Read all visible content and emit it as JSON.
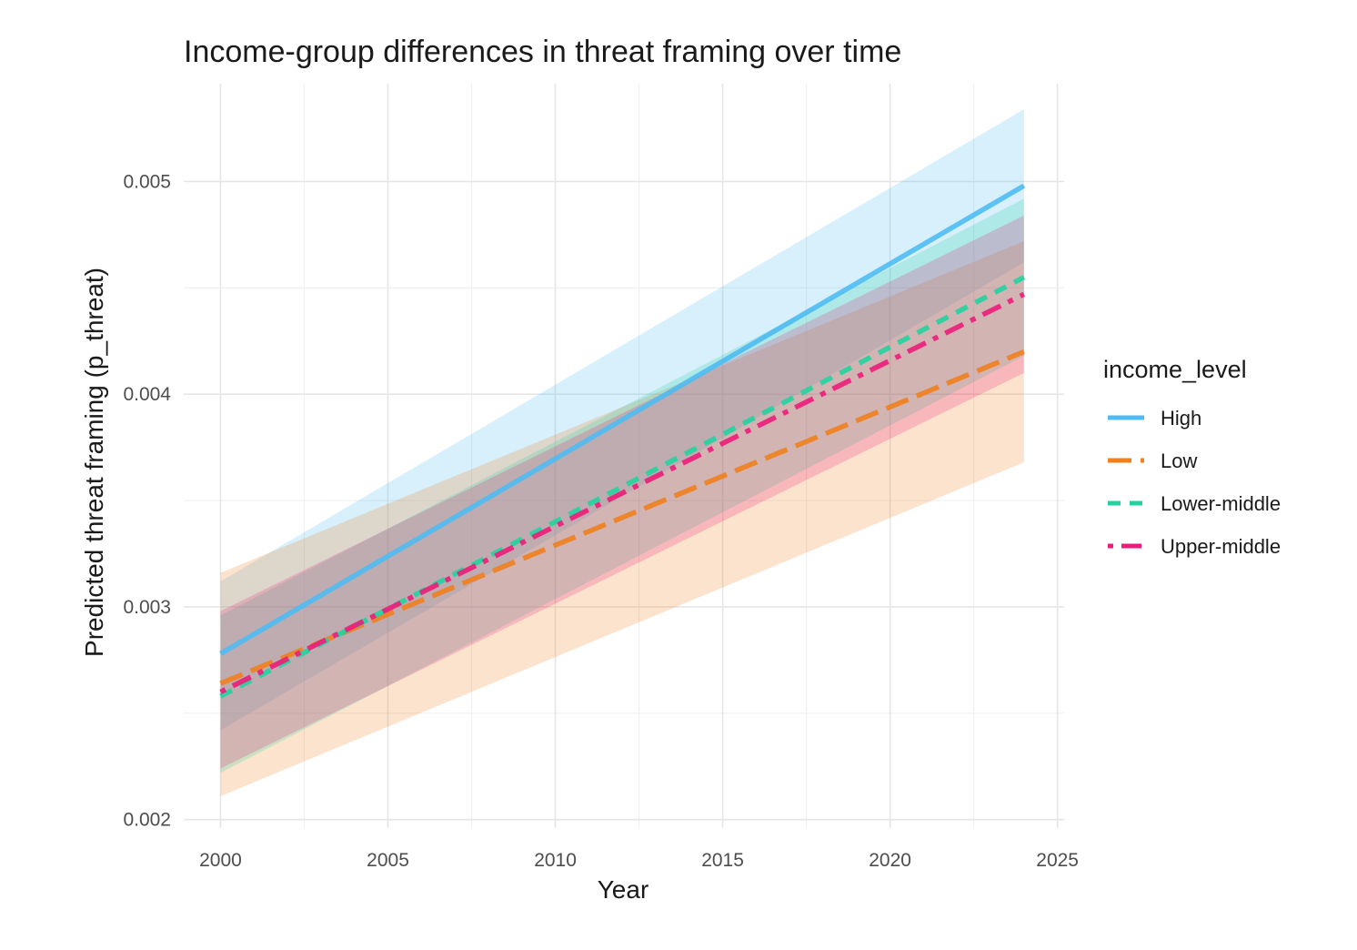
{
  "chart_data": {
    "type": "line",
    "title": "Income-group differences in threat framing over time",
    "xlabel": "Year",
    "ylabel": "Predicted threat framing (p_threat)",
    "xlim": [
      1998.9,
      2025.2
    ],
    "ylim": [
      0.00196,
      0.00546
    ],
    "x_ticks": [
      2000,
      2005,
      2010,
      2015,
      2020,
      2025
    ],
    "x_tick_labels": [
      "2000",
      "2005",
      "2010",
      "2015",
      "2020",
      "2025"
    ],
    "y_ticks": [
      0.002,
      0.003,
      0.004,
      0.005
    ],
    "y_tick_labels": [
      "0.002",
      "0.003",
      "0.004",
      "0.005"
    ],
    "grid": true,
    "legend": {
      "title": "income_level",
      "position": "right"
    },
    "x": [
      2000,
      2024
    ],
    "series": [
      {
        "name": "High",
        "color": "#4FBBF2",
        "dash": "solid",
        "values": [
          0.00278,
          0.00498
        ],
        "lower": [
          0.00242,
          0.00462
        ],
        "upper": [
          0.00312,
          0.00534
        ]
      },
      {
        "name": "Low",
        "color": "#F07F1E",
        "dash": "longdash",
        "values": [
          0.00264,
          0.0042
        ],
        "lower": [
          0.00211,
          0.00368
        ],
        "upper": [
          0.00316,
          0.00472
        ]
      },
      {
        "name": "Lower-middle",
        "color": "#22D3A0",
        "dash": "dashed",
        "values": [
          0.00258,
          0.00455
        ],
        "lower": [
          0.00222,
          0.00418
        ],
        "upper": [
          0.00296,
          0.00492
        ]
      },
      {
        "name": "Upper-middle",
        "color": "#EC1C7A",
        "dash": "dotdash",
        "values": [
          0.0026,
          0.00447
        ],
        "lower": [
          0.00224,
          0.0041
        ],
        "upper": [
          0.00298,
          0.00484
        ]
      }
    ]
  }
}
